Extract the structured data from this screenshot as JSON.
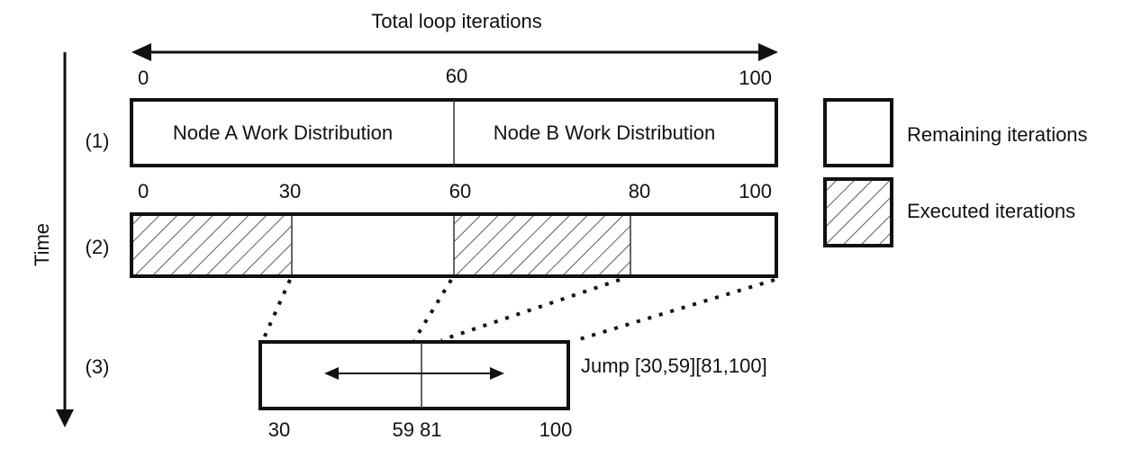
{
  "header": {
    "title": "Total loop iterations"
  },
  "axis": {
    "time_label": "Time"
  },
  "rows": {
    "row1": {
      "label": "(1)",
      "ticks": [
        "0",
        "60",
        "100"
      ],
      "segment_a": "Node A Work Distribution",
      "segment_b": "Node B Work Distribution"
    },
    "row2": {
      "label": "(2)",
      "ticks": [
        "0",
        "30",
        "60",
        "80",
        "100"
      ]
    },
    "row3": {
      "label": "(3)",
      "ticks": [
        "30",
        "59 81",
        "100"
      ],
      "annotation": "Jump [30,59][81,100]"
    }
  },
  "legend": {
    "remaining": "Remaining iterations",
    "executed": "Executed iterations"
  },
  "colors": {
    "stroke": "#111111",
    "background": "#ffffff"
  }
}
